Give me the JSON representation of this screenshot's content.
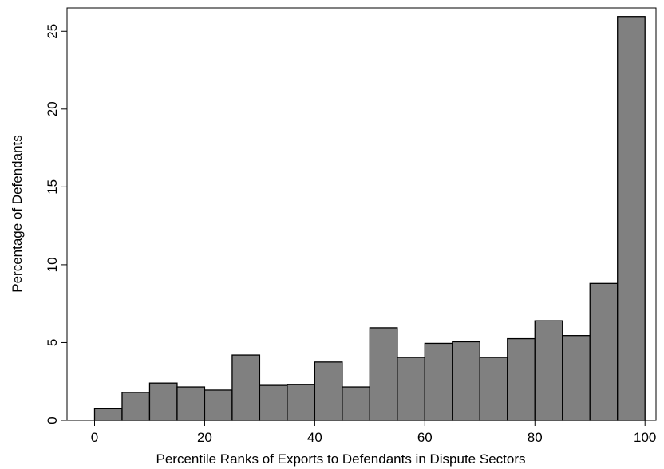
{
  "chart_data": {
    "type": "bar",
    "title": "",
    "xlabel": "Percentile Ranks of Exports to Defendants in Dispute Sectors",
    "ylabel": "Percentage of Defendants",
    "xlim": [
      -5,
      102
    ],
    "ylim": [
      0,
      26.5
    ],
    "xticks": [
      0,
      20,
      40,
      60,
      80,
      100
    ],
    "yticks": [
      0,
      5,
      10,
      15,
      20,
      25
    ],
    "bin_width": 5,
    "bins": [
      {
        "start": 0,
        "end": 5,
        "value": 0.75
      },
      {
        "start": 5,
        "end": 10,
        "value": 1.8
      },
      {
        "start": 10,
        "end": 15,
        "value": 2.4
      },
      {
        "start": 15,
        "end": 20,
        "value": 2.15
      },
      {
        "start": 20,
        "end": 25,
        "value": 1.95
      },
      {
        "start": 25,
        "end": 30,
        "value": 4.2
      },
      {
        "start": 30,
        "end": 35,
        "value": 2.25
      },
      {
        "start": 35,
        "end": 40,
        "value": 2.3
      },
      {
        "start": 40,
        "end": 45,
        "value": 3.75
      },
      {
        "start": 45,
        "end": 50,
        "value": 2.15
      },
      {
        "start": 50,
        "end": 55,
        "value": 5.95
      },
      {
        "start": 55,
        "end": 60,
        "value": 4.05
      },
      {
        "start": 60,
        "end": 65,
        "value": 4.95
      },
      {
        "start": 65,
        "end": 70,
        "value": 5.05
      },
      {
        "start": 70,
        "end": 75,
        "value": 4.05
      },
      {
        "start": 75,
        "end": 80,
        "value": 5.25
      },
      {
        "start": 80,
        "end": 85,
        "value": 6.4
      },
      {
        "start": 85,
        "end": 90,
        "value": 5.45
      },
      {
        "start": 90,
        "end": 95,
        "value": 8.8
      },
      {
        "start": 95,
        "end": 100,
        "value": 25.95
      }
    ],
    "bar_color": "#808080",
    "bar_outline": "#000000",
    "grid": false,
    "legend": "none"
  }
}
